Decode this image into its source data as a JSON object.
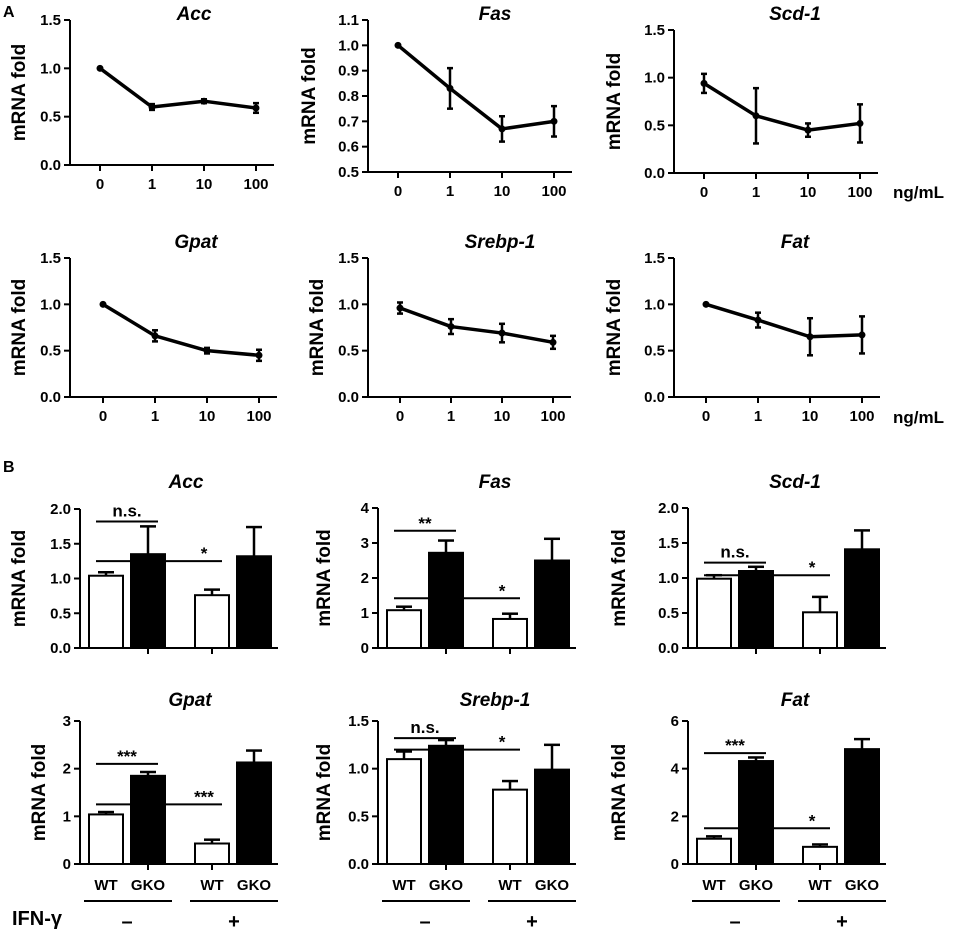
{
  "panel_labels": {
    "a": "A",
    "b": "B"
  },
  "units_label": "ng/mL",
  "group_labels": {
    "wt": "WT",
    "gko": "GKO"
  },
  "treatment": {
    "label": "IFN-γ",
    "minus": "–",
    "plus": "+"
  },
  "chart_data": [
    {
      "id": "a-acc",
      "panel": "A",
      "type": "line",
      "title": "Acc",
      "ylabel": "mRNA fold",
      "categories": [
        "0",
        "1",
        "10",
        "100"
      ],
      "values": [
        1.0,
        0.6,
        0.66,
        0.59
      ],
      "errors": [
        0.0,
        0.03,
        0.02,
        0.05
      ],
      "ylim": [
        0.0,
        1.5
      ],
      "yticks": [
        0.0,
        0.5,
        1.0,
        1.5
      ],
      "ytick_labels": [
        "0.0",
        "0.5",
        "1.0",
        "1.5"
      ]
    },
    {
      "id": "a-fas",
      "panel": "A",
      "type": "line",
      "title": "Fas",
      "ylabel": "mRNA fold",
      "categories": [
        "0",
        "1",
        "10",
        "100"
      ],
      "values": [
        1.0,
        0.83,
        0.67,
        0.7
      ],
      "errors": [
        0.0,
        0.08,
        0.05,
        0.06
      ],
      "ylim": [
        0.5,
        1.1
      ],
      "yticks": [
        0.5,
        0.6,
        0.7,
        0.8,
        0.9,
        1.0,
        1.1
      ],
      "ytick_labels": [
        "0.5",
        "0.6",
        "0.7",
        "0.8",
        "0.9",
        "1.0",
        "1.1"
      ]
    },
    {
      "id": "a-scd1",
      "panel": "A",
      "type": "line",
      "title": "Scd-1",
      "ylabel": "mRNA fold",
      "categories": [
        "0",
        "1",
        "10",
        "100"
      ],
      "values": [
        0.94,
        0.6,
        0.45,
        0.52
      ],
      "errors": [
        0.1,
        0.29,
        0.07,
        0.2
      ],
      "ylim": [
        0.0,
        1.5
      ],
      "yticks": [
        0.0,
        0.5,
        1.0,
        1.5
      ],
      "ytick_labels": [
        "0.0",
        "0.5",
        "1.0",
        "1.5"
      ]
    },
    {
      "id": "a-gpat",
      "panel": "A",
      "type": "line",
      "title": "Gpat",
      "ylabel": "mRNA fold",
      "categories": [
        "0",
        "1",
        "10",
        "100"
      ],
      "values": [
        1.0,
        0.66,
        0.5,
        0.45
      ],
      "errors": [
        0.0,
        0.06,
        0.03,
        0.06
      ],
      "ylim": [
        0.0,
        1.5
      ],
      "yticks": [
        0.0,
        0.5,
        1.0,
        1.5
      ],
      "ytick_labels": [
        "0.0",
        "0.5",
        "1.0",
        "1.5"
      ]
    },
    {
      "id": "a-srebp1",
      "panel": "A",
      "type": "line",
      "title": "Srebp-1",
      "ylabel": "mRNA fold",
      "categories": [
        "0",
        "1",
        "10",
        "100"
      ],
      "values": [
        0.96,
        0.76,
        0.69,
        0.59
      ],
      "errors": [
        0.06,
        0.08,
        0.1,
        0.07
      ],
      "ylim": [
        0.0,
        1.5
      ],
      "yticks": [
        0.0,
        0.5,
        1.0,
        1.5
      ],
      "ytick_labels": [
        "0.0",
        "0.5",
        "1.0",
        "1.5"
      ]
    },
    {
      "id": "a-fat",
      "panel": "A",
      "type": "line",
      "title": "Fat",
      "ylabel": "mRNA fold",
      "categories": [
        "0",
        "1",
        "10",
        "100"
      ],
      "values": [
        1.0,
        0.83,
        0.65,
        0.67
      ],
      "errors": [
        0.0,
        0.08,
        0.2,
        0.2
      ],
      "ylim": [
        0.0,
        1.5
      ],
      "yticks": [
        0.0,
        0.5,
        1.0,
        1.5
      ],
      "ytick_labels": [
        "0.0",
        "0.5",
        "1.0",
        "1.5"
      ]
    },
    {
      "id": "b-acc",
      "panel": "B",
      "type": "bar",
      "title": "Acc",
      "ylabel": "mRNA fold",
      "groups": [
        "WT",
        "GKO",
        "WT",
        "GKO"
      ],
      "values": [
        1.04,
        1.35,
        0.76,
        1.32
      ],
      "errors": [
        0.05,
        0.4,
        0.08,
        0.42
      ],
      "ylim": [
        0.0,
        2.0
      ],
      "yticks": [
        0.0,
        0.5,
        1.0,
        1.5,
        2.0
      ],
      "ytick_labels": [
        "0.0",
        "0.5",
        "1.0",
        "1.5",
        "2.0"
      ],
      "sig": [
        {
          "from": 0,
          "to": 1,
          "label": "n.s.",
          "level": 1.82
        },
        {
          "from": 0,
          "to": 2,
          "label": "*",
          "level": 1.25
        }
      ],
      "show_xlabels": false,
      "show_treatment": false
    },
    {
      "id": "b-fas",
      "panel": "B",
      "type": "bar",
      "title": "Fas",
      "ylabel": "mRNA fold",
      "groups": [
        "WT",
        "GKO",
        "WT",
        "GKO"
      ],
      "values": [
        1.08,
        2.72,
        0.83,
        2.5
      ],
      "errors": [
        0.1,
        0.35,
        0.15,
        0.62
      ],
      "ylim": [
        0.0,
        4.0
      ],
      "yticks": [
        0,
        1,
        2,
        3,
        4
      ],
      "ytick_labels": [
        "0",
        "1",
        "2",
        "3",
        "4"
      ],
      "sig": [
        {
          "from": 0,
          "to": 1,
          "label": "**",
          "level": 3.35
        },
        {
          "from": 0,
          "to": 2,
          "label": "*",
          "level": 1.42
        }
      ],
      "show_xlabels": false,
      "show_treatment": false
    },
    {
      "id": "b-scd1",
      "panel": "B",
      "type": "bar",
      "title": "Scd-1",
      "ylabel": "mRNA fold",
      "groups": [
        "WT",
        "GKO",
        "WT",
        "GKO"
      ],
      "values": [
        0.99,
        1.1,
        0.51,
        1.41
      ],
      "errors": [
        0.05,
        0.06,
        0.22,
        0.27
      ],
      "ylim": [
        0.0,
        2.0
      ],
      "yticks": [
        0.0,
        0.5,
        1.0,
        1.5,
        2.0
      ],
      "ytick_labels": [
        "0.0",
        "0.5",
        "1.0",
        "1.5",
        "2.0"
      ],
      "sig": [
        {
          "from": 0,
          "to": 1,
          "label": "n.s.",
          "level": 1.22
        },
        {
          "from": 0,
          "to": 2,
          "label": "*",
          "level": 1.04
        }
      ],
      "show_xlabels": false,
      "show_treatment": false
    },
    {
      "id": "b-gpat",
      "panel": "B",
      "type": "bar",
      "title": "Gpat",
      "ylabel": "mRNA fold",
      "groups": [
        "WT",
        "GKO",
        "WT",
        "GKO"
      ],
      "values": [
        1.04,
        1.85,
        0.43,
        2.13
      ],
      "errors": [
        0.05,
        0.08,
        0.08,
        0.25
      ],
      "ylim": [
        0,
        3
      ],
      "yticks": [
        0,
        1,
        2,
        3
      ],
      "ytick_labels": [
        "0",
        "1",
        "2",
        "3"
      ],
      "sig": [
        {
          "from": 0,
          "to": 1,
          "label": "***",
          "level": 2.1
        },
        {
          "from": 0,
          "to": 2,
          "label": "***",
          "level": 1.25
        }
      ],
      "show_xlabels": true,
      "show_treatment": true
    },
    {
      "id": "b-srebp1",
      "panel": "B",
      "type": "bar",
      "title": "Srebp-1",
      "ylabel": "mRNA fold",
      "groups": [
        "WT",
        "GKO",
        "WT",
        "GKO"
      ],
      "values": [
        1.1,
        1.24,
        0.78,
        0.99
      ],
      "errors": [
        0.08,
        0.06,
        0.09,
        0.26
      ],
      "ylim": [
        0.0,
        1.5
      ],
      "yticks": [
        0.0,
        0.5,
        1.0,
        1.5
      ],
      "ytick_labels": [
        "0.0",
        "0.5",
        "1.0",
        "1.5"
      ],
      "sig": [
        {
          "from": 0,
          "to": 1,
          "label": "n.s.",
          "level": 1.32
        },
        {
          "from": 0,
          "to": 2,
          "label": "*",
          "level": 1.2
        }
      ],
      "show_xlabels": true,
      "show_treatment": false
    },
    {
      "id": "b-fat",
      "panel": "B",
      "type": "bar",
      "title": "Fat",
      "ylabel": "mRNA fold",
      "groups": [
        "WT",
        "GKO",
        "WT",
        "GKO"
      ],
      "values": [
        1.06,
        4.32,
        0.72,
        4.82
      ],
      "errors": [
        0.1,
        0.15,
        0.1,
        0.42
      ],
      "ylim": [
        0,
        6
      ],
      "yticks": [
        0,
        2,
        4,
        6
      ],
      "ytick_labels": [
        "0",
        "2",
        "4",
        "6"
      ],
      "sig": [
        {
          "from": 0,
          "to": 1,
          "label": "***",
          "level": 4.65
        },
        {
          "from": 0,
          "to": 2,
          "label": "*",
          "level": 1.5
        }
      ],
      "show_xlabels": true,
      "show_treatment": false
    }
  ]
}
